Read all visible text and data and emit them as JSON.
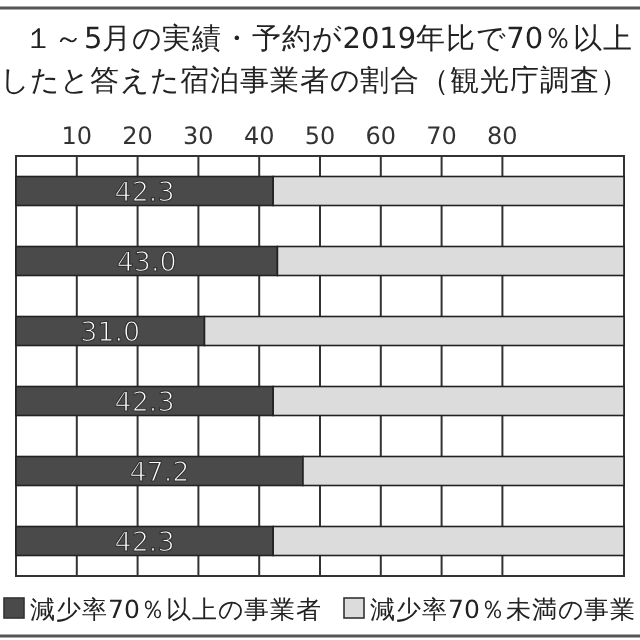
{
  "chart_data": {
    "type": "bar",
    "orientation": "horizontal",
    "stacked": true,
    "title": "１～5月の実績・予約が2019年比で70％以上",
    "subtitle": "したと答えた宿泊事業者の割合（観光庁調査）",
    "categories": [
      null,
      null,
      null,
      null,
      null,
      null
    ],
    "series": [
      {
        "name": "減少率70％以上の事業者",
        "color": "#4a4a4a",
        "values": [
          42.3,
          43.0,
          31.0,
          42.3,
          47.2,
          42.3
        ],
        "value_labels": [
          "42.3",
          "43.0",
          "31.0",
          "42.3",
          "47.2",
          "42.3"
        ]
      },
      {
        "name": "減少率70％未満の事業",
        "color": "#dcdcdc",
        "values": [
          57.7,
          57.0,
          69.0,
          57.7,
          52.8,
          57.7
        ]
      }
    ],
    "xlim": [
      0,
      100
    ],
    "xticks": [
      10,
      20,
      30,
      40,
      50,
      60,
      70,
      80
    ],
    "grid": "x",
    "legend": "bottom"
  }
}
